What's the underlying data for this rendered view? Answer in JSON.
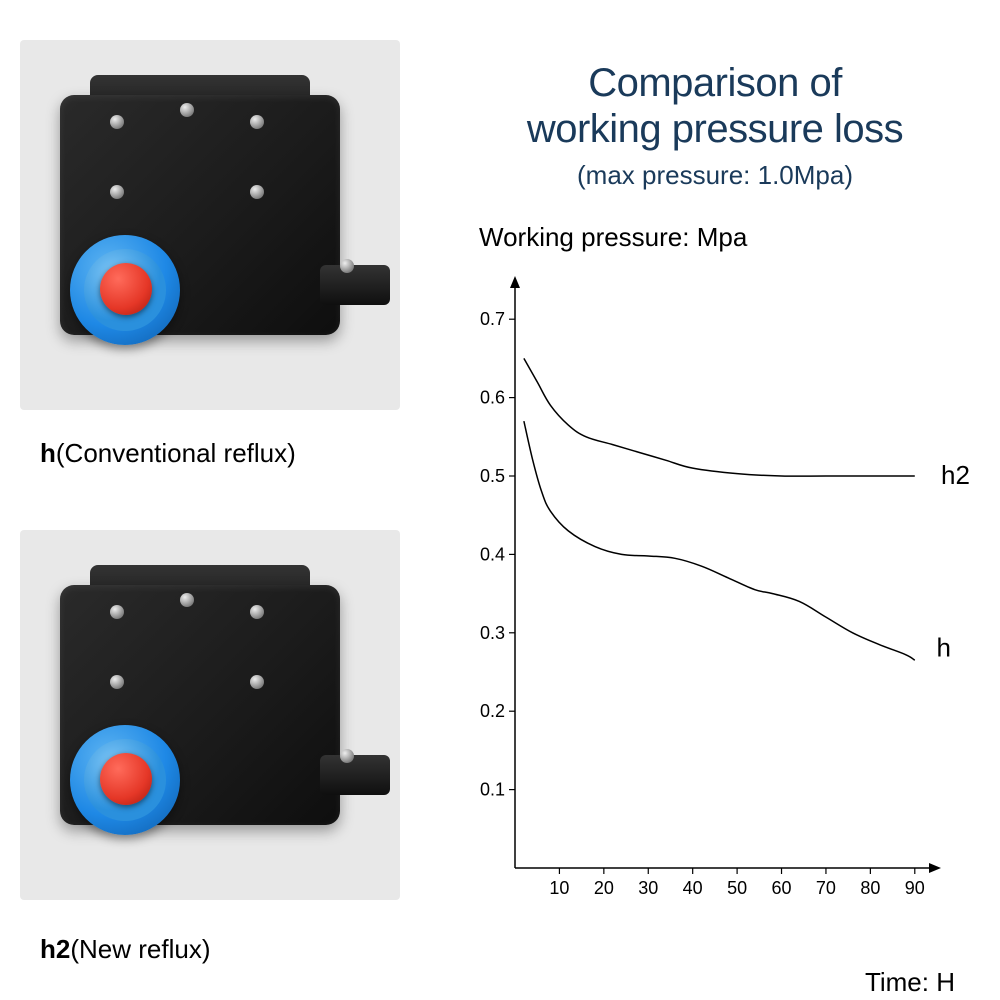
{
  "page": {
    "background_color": "#ffffff"
  },
  "products": {
    "top": {
      "label_bold": "h",
      "label_rest": "(Conventional reflux)"
    },
    "bottom": {
      "label_bold": "h2",
      "label_rest": "(New reflux)"
    }
  },
  "title": {
    "line1": "Comparison of",
    "line2": "working pressure loss",
    "subtitle": "(max pressure: 1.0Mpa)",
    "color": "#1a3a5a",
    "fontsize": 40,
    "subtitle_fontsize": 26
  },
  "chart": {
    "type": "line",
    "ylabel": "Working pressure: Mpa",
    "xlabel": "Time: H",
    "axis_color": "#000000",
    "line_color": "#000000",
    "line_width": 1.5,
    "tick_fontsize": 18,
    "label_fontsize": 26,
    "background_color": "#ffffff",
    "xlim": [
      0,
      95
    ],
    "ylim": [
      0,
      0.75
    ],
    "xticks": [
      10,
      20,
      30,
      40,
      50,
      60,
      70,
      80,
      90
    ],
    "yticks": [
      0.1,
      0.2,
      0.3,
      0.4,
      0.5,
      0.6,
      0.7
    ],
    "xtick_labels": [
      "10",
      "20",
      "30",
      "40",
      "50",
      "60",
      "70",
      "80",
      "90"
    ],
    "ytick_labels": [
      "0.1",
      "0.2",
      "0.3",
      "0.4",
      "0.5",
      "0.6",
      "0.7"
    ],
    "series": [
      {
        "name": "h2",
        "label": "h2",
        "color": "#000000",
        "points": [
          [
            2,
            0.65
          ],
          [
            5,
            0.62
          ],
          [
            8,
            0.59
          ],
          [
            12,
            0.565
          ],
          [
            16,
            0.55
          ],
          [
            22,
            0.54
          ],
          [
            28,
            0.53
          ],
          [
            34,
            0.52
          ],
          [
            40,
            0.51
          ],
          [
            50,
            0.503
          ],
          [
            60,
            0.5
          ],
          [
            70,
            0.5
          ],
          [
            80,
            0.5
          ],
          [
            90,
            0.5
          ]
        ],
        "label_pos": [
          95,
          0.5
        ]
      },
      {
        "name": "h",
        "label": "h",
        "color": "#000000",
        "points": [
          [
            2,
            0.57
          ],
          [
            4,
            0.52
          ],
          [
            6,
            0.48
          ],
          [
            8,
            0.455
          ],
          [
            12,
            0.43
          ],
          [
            18,
            0.41
          ],
          [
            24,
            0.4
          ],
          [
            30,
            0.398
          ],
          [
            36,
            0.395
          ],
          [
            42,
            0.385
          ],
          [
            48,
            0.37
          ],
          [
            54,
            0.355
          ],
          [
            58,
            0.35
          ],
          [
            64,
            0.34
          ],
          [
            70,
            0.32
          ],
          [
            76,
            0.3
          ],
          [
            82,
            0.285
          ],
          [
            88,
            0.272
          ],
          [
            90,
            0.265
          ]
        ],
        "label_pos": [
          94,
          0.28
        ]
      }
    ],
    "arrow_size": 8,
    "tick_length": 6
  }
}
